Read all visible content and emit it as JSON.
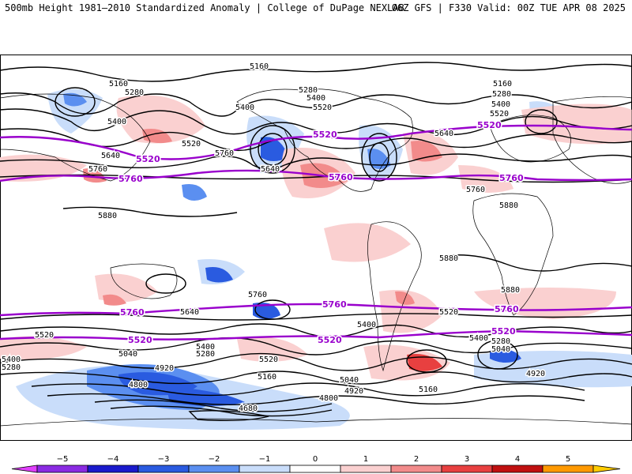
{
  "header": {
    "left_title": "500mb Height 1981–2010 Standardized Anomaly | College of DuPage NEXLAB",
    "right_title": "06Z GFS | F330 Valid: 00Z TUE APR 08 2025"
  },
  "colors": {
    "contour": "#000000",
    "highlight_contour": "#9900cc",
    "coast": "#000000"
  },
  "colorbar": {
    "ticks": [
      "−5",
      "−4",
      "−3",
      "−2",
      "−1",
      "0",
      "1",
      "2",
      "3",
      "4",
      "5"
    ],
    "bins": [
      "#e040fb",
      "#8a2be2",
      "#1a1acc",
      "#2a5be0",
      "#5b8ff0",
      "#c9ddfa",
      "#ffffff",
      "#fad0d0",
      "#f28b8b",
      "#e84040",
      "#c01010",
      "#ff9900",
      "#ffcc00"
    ]
  },
  "contour_labels": [
    "5160",
    "5160",
    "5160",
    "5280",
    "5280",
    "5400",
    "5400",
    "5400",
    "5520",
    "5520",
    "5520",
    "5640",
    "5640",
    "5760",
    "5760",
    "5760",
    "5880",
    "5880",
    "5880",
    "5880",
    "5160",
    "5280",
    "5400",
    "5520",
    "5640",
    "5760",
    "5640",
    "5520",
    "5400",
    "5280",
    "5040",
    "4920",
    "4800",
    "4680",
    "5160",
    "5040",
    "4920",
    "4800",
    "4920",
    "5040",
    "5160",
    "5280",
    "5400",
    "5520",
    "5640",
    "5400",
    "5280",
    "5040",
    "4920",
    "5520",
    "5400"
  ],
  "highlight_labels": [
    "5520",
    "5520",
    "5520",
    "5760",
    "5760",
    "5760",
    "5760",
    "5760",
    "5760",
    "5520",
    "5520",
    "5520"
  ]
}
